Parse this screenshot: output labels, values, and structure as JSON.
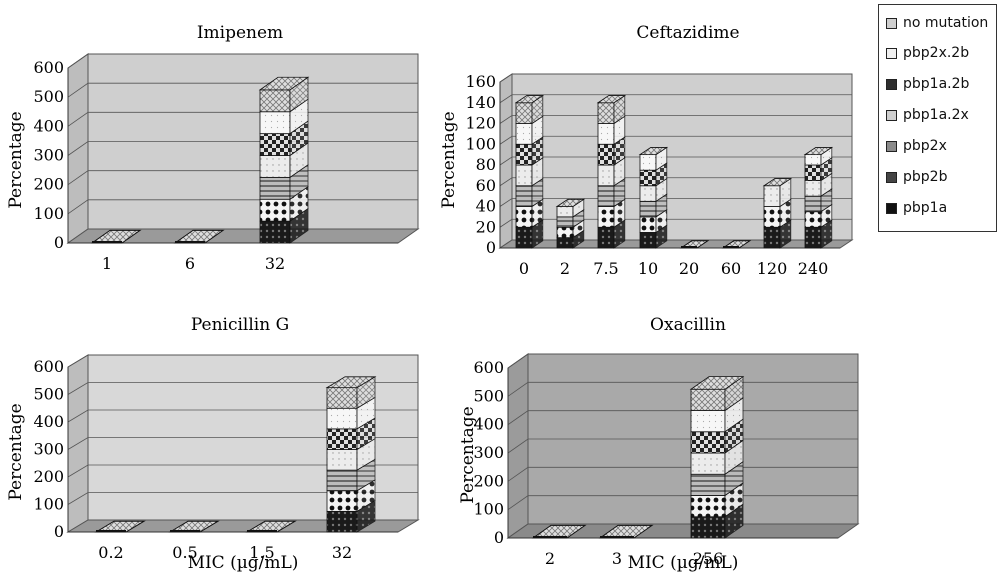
{
  "legend": [
    "no mutation",
    "pbp2x.2b",
    "pbp1a.2b",
    "pbp1a.2x",
    "pbp2x",
    "pbp2b",
    "pbp1a"
  ],
  "colors": {
    "background": "#ffffff",
    "wall": "#cfcfcf",
    "wall_dark": "#a8a8a8",
    "floor": "#8f8f8f",
    "pbp1a": "#1a1a1a",
    "pbp2b": "#f5f5f5",
    "pbp2x": "#9a9a9a",
    "pbp1a.2x": "#e6e6e6",
    "pbp1a.2b": "#2e2e2e",
    "pbp2x.2b": "#f0f0f0",
    "no mutation": "#d0d0d0"
  },
  "chart_data": [
    {
      "type": "bar",
      "stacked": true,
      "title": "Imipenem",
      "ylabel": "Percentage",
      "xlabel": "",
      "ylim": [
        0,
        600
      ],
      "yticks": [
        "0",
        "100",
        "200",
        "300",
        "400",
        "500",
        "600"
      ],
      "categories": [
        "1",
        "6",
        "32"
      ],
      "series": [
        {
          "name": "pbp1a",
          "values": [
            0,
            0,
            75
          ]
        },
        {
          "name": "pbp2b",
          "values": [
            0,
            0,
            75
          ]
        },
        {
          "name": "pbp2x",
          "values": [
            0,
            0,
            75
          ]
        },
        {
          "name": "pbp1a.2x",
          "values": [
            0,
            0,
            75
          ]
        },
        {
          "name": "pbp1a.2b",
          "values": [
            0,
            0,
            75
          ]
        },
        {
          "name": "pbp2x.2b",
          "values": [
            0,
            0,
            75
          ]
        },
        {
          "name": "no mutation",
          "values": [
            0,
            0,
            75
          ]
        }
      ]
    },
    {
      "type": "bar",
      "stacked": true,
      "title": "Ceftazidime",
      "ylabel": "Percentage",
      "xlabel": "",
      "ylim": [
        0,
        160
      ],
      "yticks": [
        "0",
        "20",
        "40",
        "60",
        "80",
        "100",
        "120",
        "140",
        "160"
      ],
      "categories": [
        "0",
        "2",
        "7.5",
        "10",
        "20",
        "60",
        "120",
        "240"
      ],
      "series": [
        {
          "name": "pbp1a",
          "values": [
            20,
            10,
            20,
            15,
            0,
            0,
            20,
            20
          ]
        },
        {
          "name": "pbp2b",
          "values": [
            20,
            10,
            20,
            15,
            0,
            0,
            20,
            15
          ]
        },
        {
          "name": "pbp2x",
          "values": [
            20,
            10,
            20,
            15,
            0,
            0,
            0,
            15
          ]
        },
        {
          "name": "pbp1a.2x",
          "values": [
            20,
            10,
            20,
            15,
            0,
            0,
            20,
            15
          ]
        },
        {
          "name": "pbp1a.2b",
          "values": [
            20,
            0,
            20,
            15,
            0,
            0,
            0,
            15
          ]
        },
        {
          "name": "pbp2x.2b",
          "values": [
            20,
            0,
            20,
            15,
            0,
            0,
            0,
            10
          ]
        },
        {
          "name": "no mutation",
          "values": [
            20,
            0,
            20,
            0,
            0,
            0,
            0,
            0
          ]
        }
      ]
    },
    {
      "type": "bar",
      "stacked": true,
      "title": "Penicillin G",
      "ylabel": "Percentage",
      "xlabel": "MIC (µg/mL)",
      "ylim": [
        0,
        600
      ],
      "yticks": [
        "0",
        "100",
        "200",
        "300",
        "400",
        "500",
        "600"
      ],
      "categories": [
        "0.2",
        "0.5",
        "1.5",
        "32"
      ],
      "series": [
        {
          "name": "pbp1a",
          "values": [
            0,
            0,
            0,
            75
          ]
        },
        {
          "name": "pbp2b",
          "values": [
            0,
            0,
            0,
            75
          ]
        },
        {
          "name": "pbp2x",
          "values": [
            0,
            0,
            0,
            75
          ]
        },
        {
          "name": "pbp1a.2x",
          "values": [
            0,
            0,
            0,
            75
          ]
        },
        {
          "name": "pbp1a.2b",
          "values": [
            0,
            0,
            0,
            75
          ]
        },
        {
          "name": "pbp2x.2b",
          "values": [
            0,
            0,
            0,
            75
          ]
        },
        {
          "name": "no mutation",
          "values": [
            0,
            0,
            0,
            75
          ]
        }
      ]
    },
    {
      "type": "bar",
      "stacked": true,
      "title": "Oxacillin",
      "ylabel": "Percentage",
      "xlabel": "MIC (µg/mL)",
      "ylim": [
        0,
        600
      ],
      "yticks": [
        "0",
        "100",
        "200",
        "300",
        "400",
        "500",
        "600"
      ],
      "categories": [
        "2",
        "3",
        "256"
      ],
      "series": [
        {
          "name": "pbp1a",
          "values": [
            0,
            0,
            75
          ]
        },
        {
          "name": "pbp2b",
          "values": [
            0,
            0,
            75
          ]
        },
        {
          "name": "pbp2x",
          "values": [
            0,
            0,
            75
          ]
        },
        {
          "name": "pbp1a.2x",
          "values": [
            0,
            0,
            75
          ]
        },
        {
          "name": "pbp1a.2b",
          "values": [
            0,
            0,
            75
          ]
        },
        {
          "name": "pbp2x.2b",
          "values": [
            0,
            0,
            75
          ]
        },
        {
          "name": "no mutation",
          "values": [
            0,
            0,
            75
          ]
        }
      ]
    }
  ]
}
